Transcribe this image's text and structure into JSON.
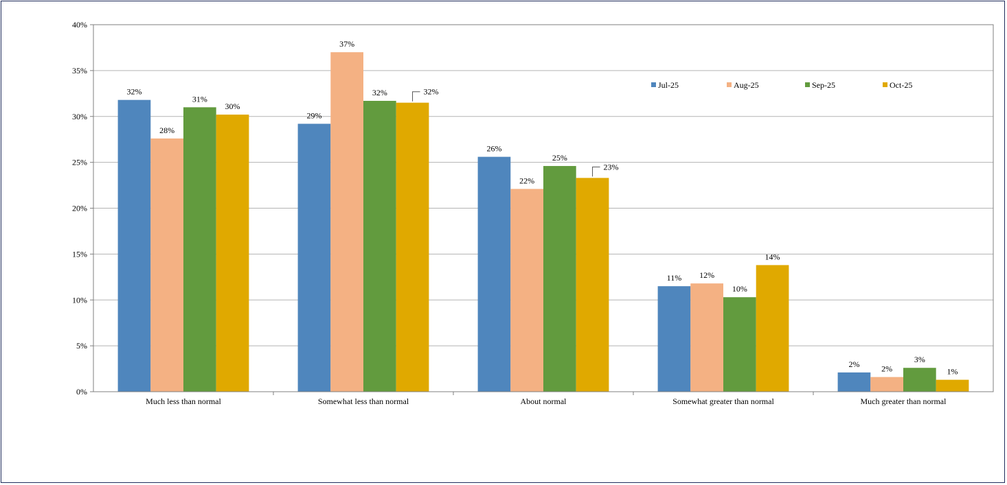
{
  "chart_data": {
    "type": "bar",
    "categories": [
      "Much less than normal",
      "Somewhat less than normal",
      "About normal",
      "Somewhat greater than normal",
      "Much greater than normal"
    ],
    "series": [
      {
        "name": "Jul-25",
        "color": "#4f86bd",
        "values": [
          31.8,
          29.2,
          25.6,
          11.5,
          2.1
        ],
        "labels": [
          "32%",
          "29%",
          "26%",
          "11%",
          "2%"
        ]
      },
      {
        "name": "Aug-25",
        "color": "#f4b183",
        "values": [
          27.6,
          37.0,
          22.1,
          11.8,
          1.6
        ],
        "labels": [
          "28%",
          "37%",
          "22%",
          "12%",
          "2%"
        ]
      },
      {
        "name": "Sep-25",
        "color": "#629b3e",
        "values": [
          31.0,
          31.7,
          24.6,
          10.3,
          2.6
        ],
        "labels": [
          "31%",
          "32%",
          "25%",
          "10%",
          "3%"
        ]
      },
      {
        "name": "Oct-25",
        "color": "#e0a900",
        "values": [
          30.2,
          31.5,
          23.3,
          13.8,
          1.3
        ],
        "labels": [
          "30%",
          "32%",
          "23%",
          "14%",
          "1%"
        ]
      }
    ],
    "y_ticks": [
      "0%",
      "5%",
      "10%",
      "15%",
      "20%",
      "25%",
      "30%",
      "35%",
      "40%"
    ],
    "ylim": [
      0,
      40
    ],
    "grid": true,
    "legend": "top-right"
  }
}
